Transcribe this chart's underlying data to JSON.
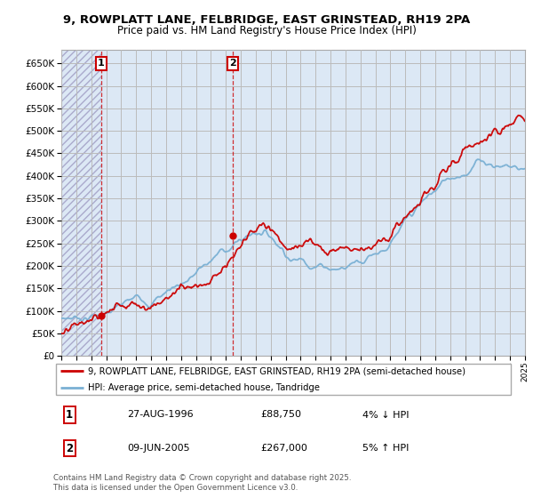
{
  "title_line1": "9, ROWPLATT LANE, FELBRIDGE, EAST GRINSTEAD, RH19 2PA",
  "title_line2": "Price paid vs. HM Land Registry's House Price Index (HPI)",
  "legend_label1": "9, ROWPLATT LANE, FELBRIDGE, EAST GRINSTEAD, RH19 2PA (semi-detached house)",
  "legend_label2": "HPI: Average price, semi-detached house, Tandridge",
  "annotation1_date": "27-AUG-1996",
  "annotation1_price": "£88,750",
  "annotation1_hpi": "4% ↓ HPI",
  "annotation2_date": "09-JUN-2005",
  "annotation2_price": "£267,000",
  "annotation2_hpi": "5% ↑ HPI",
  "copyright": "Contains HM Land Registry data © Crown copyright and database right 2025.\nThis data is licensed under the Open Government Licence v3.0.",
  "red_color": "#cc0000",
  "blue_color": "#7ab0d4",
  "background_color": "#ffffff",
  "plot_bg_color": "#dce8f5",
  "grid_color": "#bbbbbb",
  "ylim": [
    0,
    680000
  ],
  "yticks": [
    0,
    50000,
    100000,
    150000,
    200000,
    250000,
    300000,
    350000,
    400000,
    450000,
    500000,
    550000,
    600000,
    650000
  ],
  "xstart_year": 1994,
  "xend_year": 2025,
  "purchase1_year": 1996.65,
  "purchase1_price": 88750,
  "purchase2_year": 2005.44,
  "purchase2_price": 267000
}
